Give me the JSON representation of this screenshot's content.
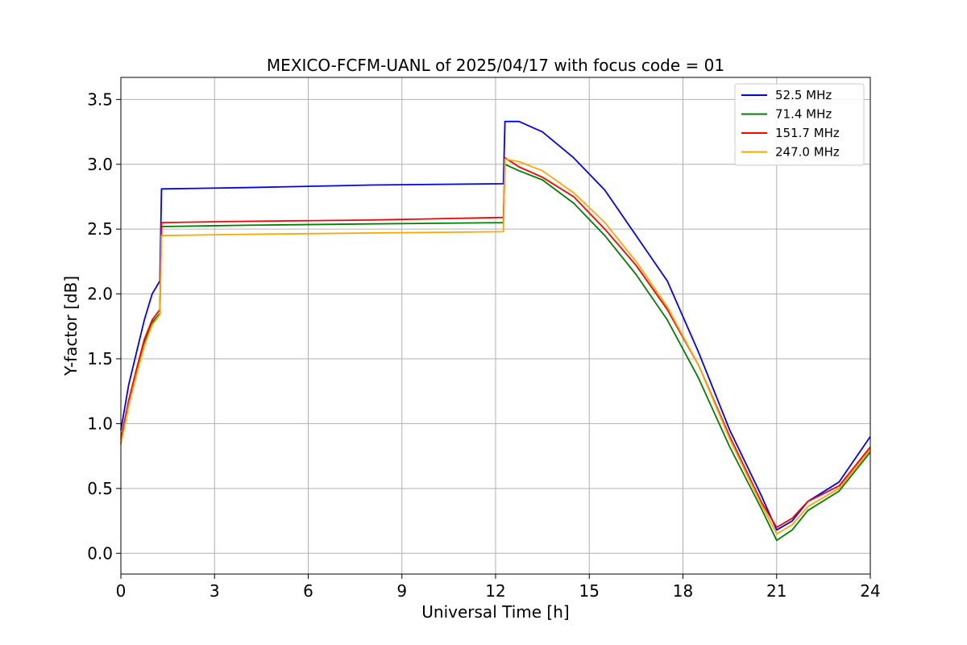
{
  "chart_data": {
    "type": "line",
    "title": "MEXICO-FCFM-UANL of 2025/04/17 with focus code = 01",
    "xlabel": "Universal Time [h]",
    "ylabel": "Y-factor [dB]",
    "xlim": [
      0,
      24
    ],
    "ylim": [
      -0.16,
      3.67
    ],
    "xticks": [
      0,
      3,
      6,
      9,
      12,
      15,
      18,
      21,
      24
    ],
    "xtick_labels": [
      "0",
      "3",
      "6",
      "9",
      "12",
      "15",
      "18",
      "21",
      "24"
    ],
    "yticks": [
      0.0,
      0.5,
      1.0,
      1.5,
      2.0,
      2.5,
      3.0,
      3.5
    ],
    "ytick_labels": [
      "0.0",
      "0.5",
      "1.0",
      "1.5",
      "2.0",
      "2.5",
      "3.0",
      "3.5"
    ],
    "grid": true,
    "legend_position": "top-right",
    "x": [
      0,
      0.25,
      0.5,
      0.75,
      1.0,
      1.25,
      1.3,
      4,
      8,
      12.25,
      12.3,
      12.75,
      13.5,
      14.5,
      15.5,
      16.5,
      17.5,
      18.5,
      19.5,
      20.5,
      21.0,
      21.5,
      22.0,
      23.0,
      24.0
    ],
    "series": [
      {
        "name": " 52.5 MHz",
        "color": "#0000ff",
        "values": [
          0.95,
          1.3,
          1.55,
          1.8,
          2.0,
          2.1,
          2.81,
          2.82,
          2.84,
          2.85,
          3.33,
          3.33,
          3.25,
          3.05,
          2.8,
          2.45,
          2.1,
          1.55,
          0.95,
          0.45,
          0.18,
          0.25,
          0.4,
          0.55,
          0.9
        ]
      },
      {
        "name": " 71.4 MHz",
        "color": "#008000",
        "values": [
          0.85,
          1.15,
          1.4,
          1.62,
          1.78,
          1.85,
          2.52,
          2.53,
          2.54,
          2.55,
          3.0,
          2.95,
          2.88,
          2.7,
          2.45,
          2.15,
          1.8,
          1.35,
          0.82,
          0.35,
          0.1,
          0.18,
          0.33,
          0.48,
          0.78
        ]
      },
      {
        "name": " 151.7 MHz",
        "color": "#ff0000",
        "values": [
          0.88,
          1.18,
          1.42,
          1.65,
          1.8,
          1.88,
          2.55,
          2.56,
          2.57,
          2.59,
          3.05,
          2.98,
          2.9,
          2.75,
          2.5,
          2.22,
          1.88,
          1.45,
          0.9,
          0.4,
          0.2,
          0.27,
          0.4,
          0.52,
          0.82
        ]
      },
      {
        "name": " 247.0 MHz",
        "color": "#ffa500",
        "values": [
          0.84,
          1.14,
          1.38,
          1.6,
          1.76,
          1.84,
          2.45,
          2.46,
          2.47,
          2.48,
          3.04,
          3.02,
          2.95,
          2.78,
          2.55,
          2.25,
          1.9,
          1.45,
          0.88,
          0.38,
          0.15,
          0.22,
          0.36,
          0.5,
          0.8
        ]
      }
    ]
  }
}
